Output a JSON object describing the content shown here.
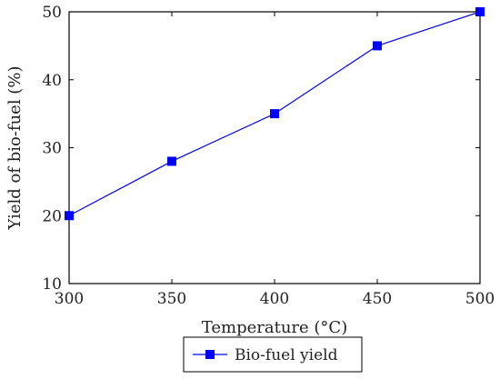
{
  "chart_data": {
    "type": "line",
    "x": [
      300,
      350,
      400,
      450,
      500
    ],
    "series": [
      {
        "name": "Bio-fuel yield",
        "values": [
          20,
          28,
          35,
          45,
          50
        ]
      }
    ],
    "xlabel": "Temperature (°C)",
    "ylabel": "Yield of bio-fuel (%)",
    "xlim": [
      300,
      500
    ],
    "ylim": [
      10,
      50
    ],
    "xticks": [
      300,
      350,
      400,
      450,
      500
    ],
    "yticks": [
      10,
      20,
      30,
      40,
      50
    ],
    "grid": false,
    "legend_position": "bottom-center",
    "colors": {
      "series": "#0000ff",
      "axis": "#000000"
    }
  }
}
